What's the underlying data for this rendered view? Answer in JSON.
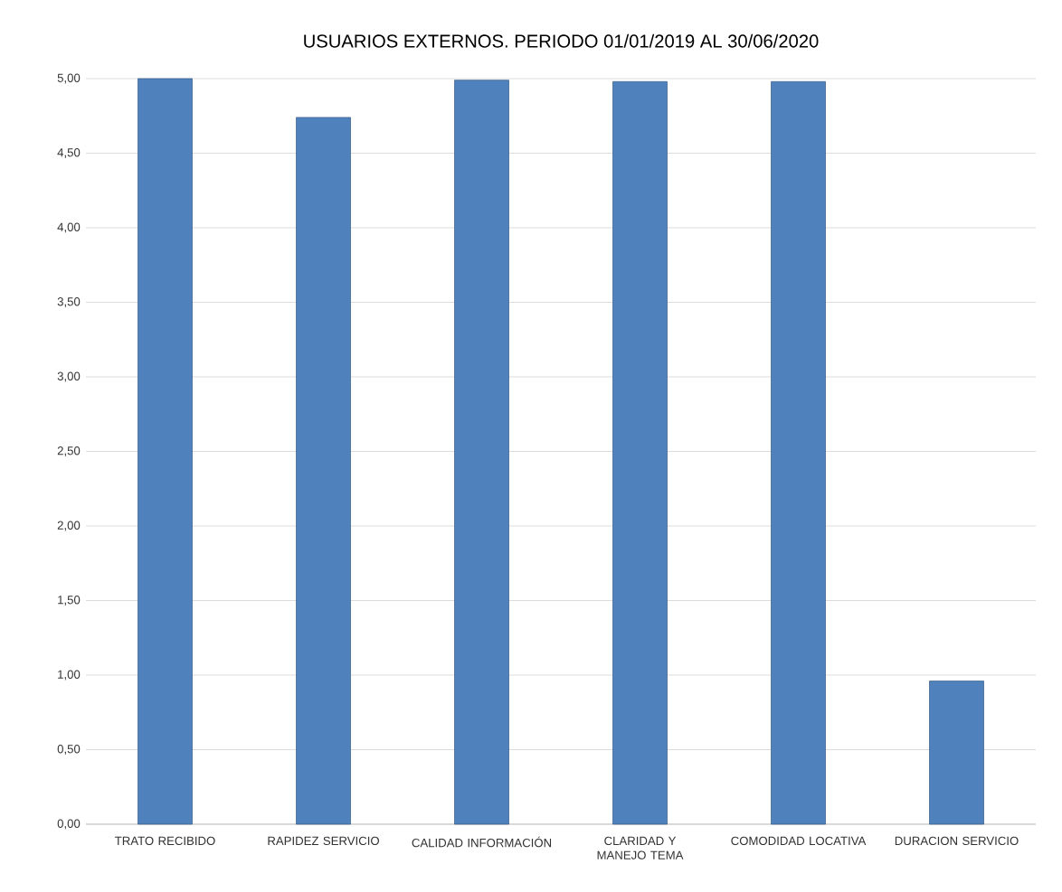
{
  "chart_data": {
    "type": "bar",
    "title": "USUARIOS EXTERNOS. PERIODO 01/01/2019 AL 30/06/2020",
    "categories": [
      "TRATO RECIBIDO",
      "RAPIDEZ SERVICIO",
      "CALIDAD INFORMACIÓN",
      "CLARIDAD Y MANEJO TEMA",
      "COMODIDAD LOCATIVA",
      "DURACION SERVICIO"
    ],
    "values": [
      5.0,
      4.74,
      4.99,
      4.98,
      4.98,
      0.96
    ],
    "color": "#4f81bd",
    "ylim": [
      0,
      5
    ],
    "yticks": [
      {
        "value": 0,
        "label": "0,00"
      },
      {
        "value": 0.5,
        "label": "0,50"
      },
      {
        "value": 1,
        "label": "1,00"
      },
      {
        "value": 1.5,
        "label": "1,50"
      },
      {
        "value": 2,
        "label": "2,00"
      },
      {
        "value": 2.5,
        "label": "2,50"
      },
      {
        "value": 3,
        "label": "3,00"
      },
      {
        "value": 3.5,
        "label": "3,50"
      },
      {
        "value": 4,
        "label": "4,00"
      },
      {
        "value": 4.5,
        "label": "4,50"
      },
      {
        "value": 5,
        "label": "5,00"
      }
    ],
    "grid": "y"
  }
}
